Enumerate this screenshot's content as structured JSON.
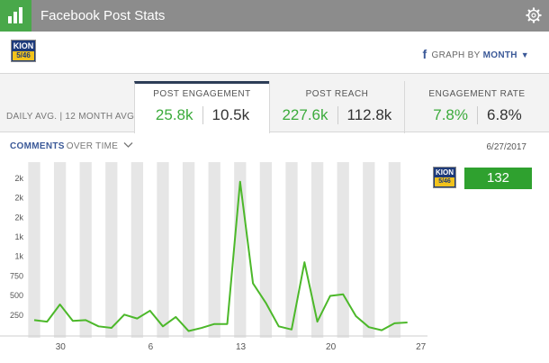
{
  "window": {
    "title": "Facebook Post Stats"
  },
  "header": {
    "graph_by_label": "GRAPH BY",
    "graph_by_value": "MONTH",
    "logo_text_top": "KION",
    "logo_text_bottom": "5/46"
  },
  "stats": {
    "row_label": "DAILY AVG. | 12 MONTH AVG.",
    "tabs": [
      {
        "label": "POST ENGAGEMENT",
        "daily": "25.8k",
        "monthly": "10.5k",
        "active": true
      },
      {
        "label": "POST REACH",
        "daily": "227.6k",
        "monthly": "112.8k",
        "active": false
      },
      {
        "label": "ENGAGEMENT RATE",
        "daily": "7.8%",
        "monthly": "6.8%",
        "active": false
      }
    ]
  },
  "chart_header": {
    "metric": "COMMENTS",
    "suffix": "OVER TIME",
    "date": "6/27/2017"
  },
  "side": {
    "value": "132"
  },
  "colors": {
    "accent_green": "#3cab3c",
    "line_green": "#4cb82a",
    "facebook_blue": "#3b5998",
    "header_gray": "#8c8c8c"
  },
  "chart_data": {
    "type": "line",
    "title": "",
    "xlabel": "",
    "ylabel": "",
    "x_tick_labels": [
      "30",
      "6",
      "13",
      "20",
      "27"
    ],
    "x_tick_index": [
      2,
      9,
      16,
      23,
      30
    ],
    "y_tick_labels": [
      "250",
      "500",
      "750",
      "1k",
      "1k",
      "2k",
      "2k",
      "2k"
    ],
    "y_tick_values": [
      250,
      500,
      750,
      1000,
      1250,
      1500,
      1750,
      2000
    ],
    "ylim": [
      0,
      2200
    ],
    "grid": "alternating vertical bands",
    "series": [
      {
        "values": [
          180,
          160,
          380,
          170,
          180,
          100,
          80,
          250,
          200,
          300,
          100,
          220,
          40,
          80,
          130,
          130,
          1950,
          650,
          400,
          100,
          60,
          920,
          160,
          490,
          510,
          230,
          90,
          50,
          140,
          150
        ]
      }
    ]
  }
}
